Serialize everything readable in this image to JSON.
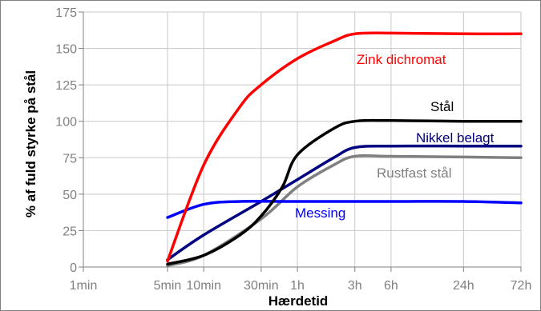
{
  "chart_data": {
    "type": "line",
    "xlabel": "Hærdetid",
    "ylabel": "% af fuld styrke på stål",
    "x_scale": "log",
    "x_unit": "minutes",
    "x_ticks": [
      {
        "label": "1min",
        "value": 1
      },
      {
        "label": "5min",
        "value": 5
      },
      {
        "label": "10min",
        "value": 10
      },
      {
        "label": "30min",
        "value": 30
      },
      {
        "label": "1h",
        "value": 60
      },
      {
        "label": "3h",
        "value": 180
      },
      {
        "label": "6h",
        "value": 360
      },
      {
        "label": "24h",
        "value": 1440
      },
      {
        "label": "72h",
        "value": 4320
      }
    ],
    "ylim": [
      0,
      175
    ],
    "y_ticks": [
      0,
      25,
      50,
      75,
      100,
      125,
      150,
      175
    ],
    "grid": "vertical-and-horizontal",
    "series": [
      {
        "name": "Zink dichromat",
        "color": "#ff0000",
        "points": [
          [
            5,
            4
          ],
          [
            10,
            70
          ],
          [
            20,
            110
          ],
          [
            30,
            125
          ],
          [
            60,
            143
          ],
          [
            120,
            155
          ],
          [
            180,
            160
          ],
          [
            360,
            160.5
          ],
          [
            1440,
            160
          ],
          [
            4320,
            160
          ]
        ]
      },
      {
        "name": "Stål",
        "color": "#000000",
        "points": [
          [
            5,
            2
          ],
          [
            10,
            8
          ],
          [
            20,
            22
          ],
          [
            30,
            35
          ],
          [
            45,
            55
          ],
          [
            60,
            77
          ],
          [
            120,
            95
          ],
          [
            180,
            100
          ],
          [
            360,
            100.5
          ],
          [
            1440,
            100
          ],
          [
            4320,
            100
          ]
        ]
      },
      {
        "name": "Nikkel belagt",
        "color": "#000080",
        "points": [
          [
            5,
            5
          ],
          [
            10,
            22
          ],
          [
            30,
            45
          ],
          [
            60,
            60
          ],
          [
            120,
            75
          ],
          [
            180,
            82
          ],
          [
            360,
            83
          ],
          [
            1440,
            83
          ],
          [
            4320,
            83
          ]
        ]
      },
      {
        "name": "Rustfast stål",
        "color": "#808080",
        "points": [
          [
            5,
            1
          ],
          [
            10,
            8
          ],
          [
            30,
            33
          ],
          [
            60,
            55
          ],
          [
            120,
            70
          ],
          [
            180,
            76
          ],
          [
            360,
            76
          ],
          [
            1440,
            75.5
          ],
          [
            4320,
            75
          ]
        ]
      },
      {
        "name": "Messing",
        "color": "#0000ff",
        "points": [
          [
            5,
            34
          ],
          [
            10,
            43
          ],
          [
            20,
            45
          ],
          [
            60,
            45
          ],
          [
            360,
            45
          ],
          [
            1440,
            45
          ],
          [
            4320,
            44
          ]
        ]
      }
    ]
  }
}
